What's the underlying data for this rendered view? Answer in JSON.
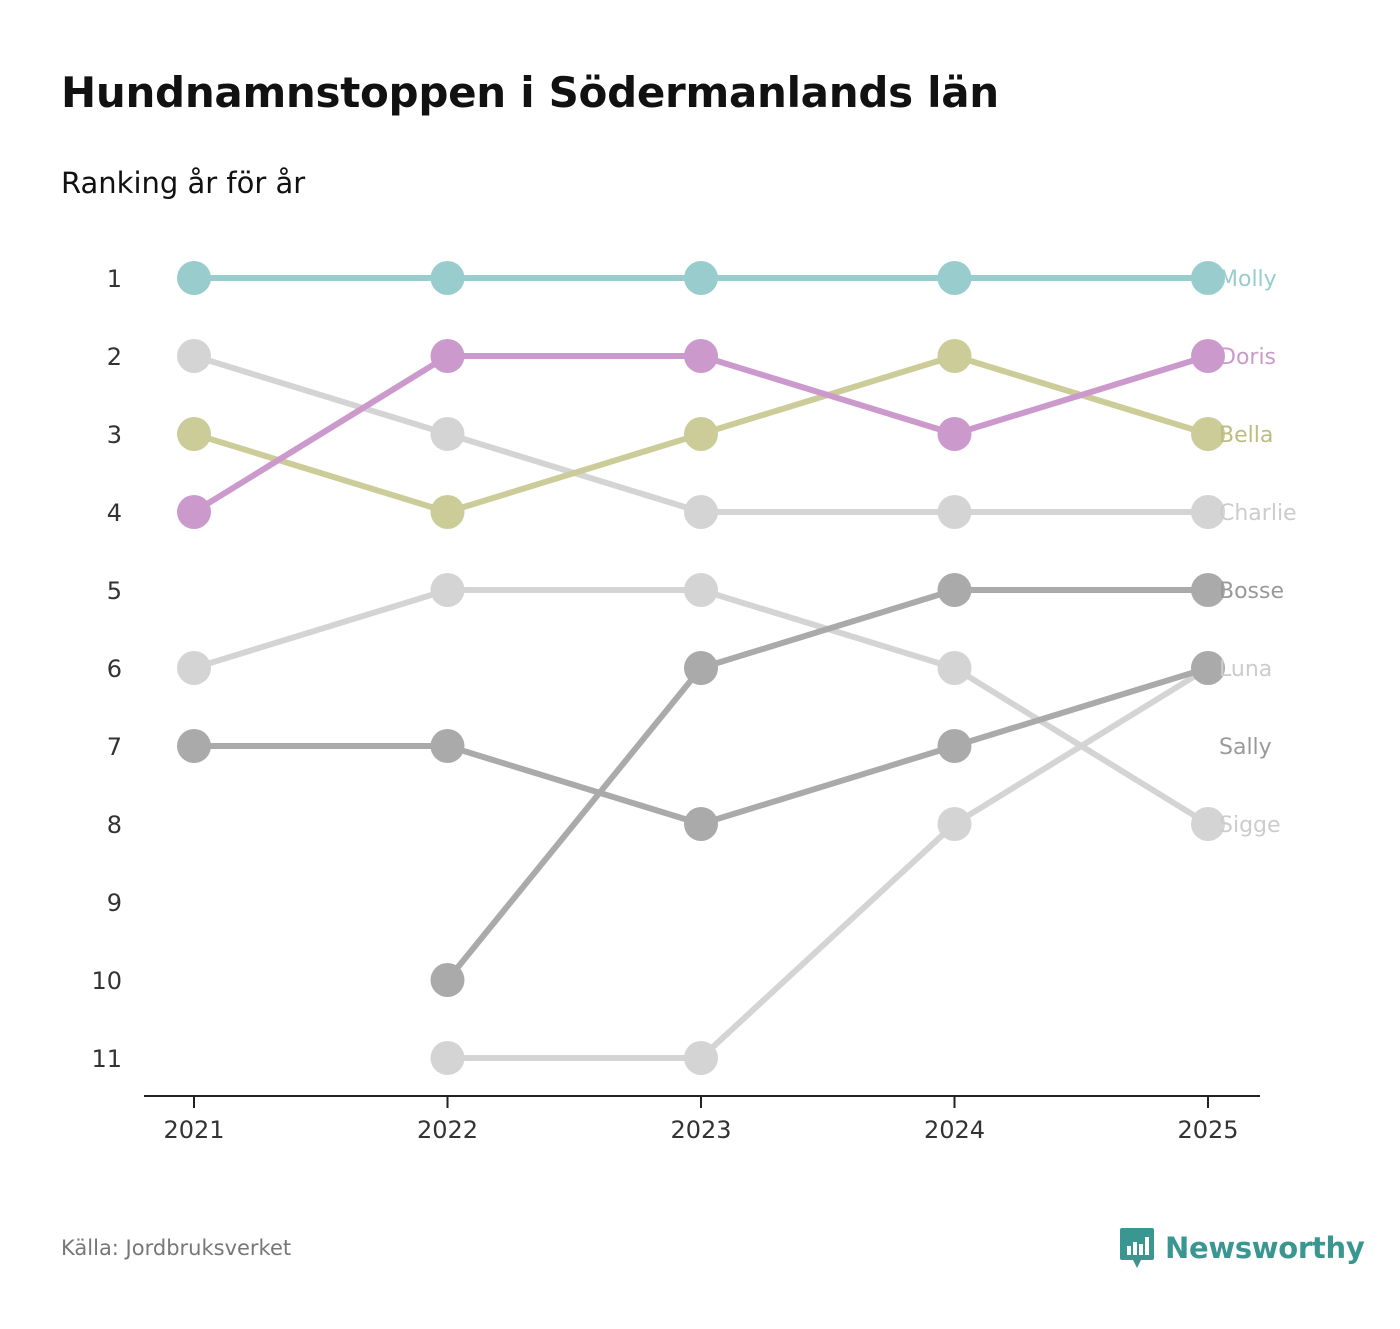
{
  "title": "Hundnamnstoppen i Södermanlands län",
  "subtitle": "Ranking år för år",
  "source": "Källa: Jordbruksverket",
  "brand": "Newsworthy",
  "brand_icon": "newsworthy-chart-icon",
  "colors": {
    "text": "#111111",
    "axis_text": "#333333",
    "source_text": "#777777",
    "brand": "#3a9690"
  },
  "chart_data": {
    "type": "line",
    "subtype": "bump",
    "title": "Hundnamnstoppen i Södermanlands län",
    "subtitle": "Ranking år för år",
    "xlabel": "",
    "ylabel": "",
    "x": [
      "2021",
      "2022",
      "2023",
      "2024",
      "2025"
    ],
    "y_ticks": [
      1,
      2,
      3,
      4,
      5,
      6,
      7,
      8,
      9,
      10,
      11
    ],
    "ylim": [
      1,
      11
    ],
    "y_inverted": true,
    "grid": false,
    "series": [
      {
        "name": "Molly",
        "color": "#99cccc",
        "label_color": "#99cccc",
        "values": [
          1,
          1,
          1,
          1,
          1
        ]
      },
      {
        "name": "Doris",
        "color": "#cc99cc",
        "label_color": "#cc99cc",
        "values": [
          4,
          2,
          2,
          3,
          2
        ]
      },
      {
        "name": "Bella",
        "color": "#cccc99",
        "label_color": "#bdbd80",
        "values": [
          3,
          4,
          3,
          2,
          3
        ]
      },
      {
        "name": "Charlie",
        "color": "#d4d4d4",
        "label_color": "#cccccc",
        "values": [
          2,
          3,
          4,
          4,
          4
        ]
      },
      {
        "name": "Bosse",
        "color": "#aaaaaa",
        "label_color": "#999999",
        "values": [
          null,
          10,
          6,
          5,
          5
        ]
      },
      {
        "name": "Luna",
        "color": "#d4d4d4",
        "label_color": "#cccccc",
        "values": [
          null,
          11,
          11,
          8,
          6
        ]
      },
      {
        "name": "Sally",
        "color": "#aaaaaa",
        "label_color": "#999999",
        "values": [
          7,
          7,
          8,
          7,
          6
        ]
      },
      {
        "name": "Sigge",
        "color": "#d4d4d4",
        "label_color": "#cccccc",
        "values": [
          6,
          5,
          5,
          6,
          8
        ]
      }
    ],
    "end_labels": [
      {
        "name": "Molly",
        "rank": 1
      },
      {
        "name": "Doris",
        "rank": 2
      },
      {
        "name": "Bella",
        "rank": 3
      },
      {
        "name": "Charlie",
        "rank": 4
      },
      {
        "name": "Bosse",
        "rank": 5
      },
      {
        "name": "Luna",
        "rank": 6
      },
      {
        "name": "Sally",
        "rank": 7
      },
      {
        "name": "Sigge",
        "rank": 8
      }
    ]
  }
}
